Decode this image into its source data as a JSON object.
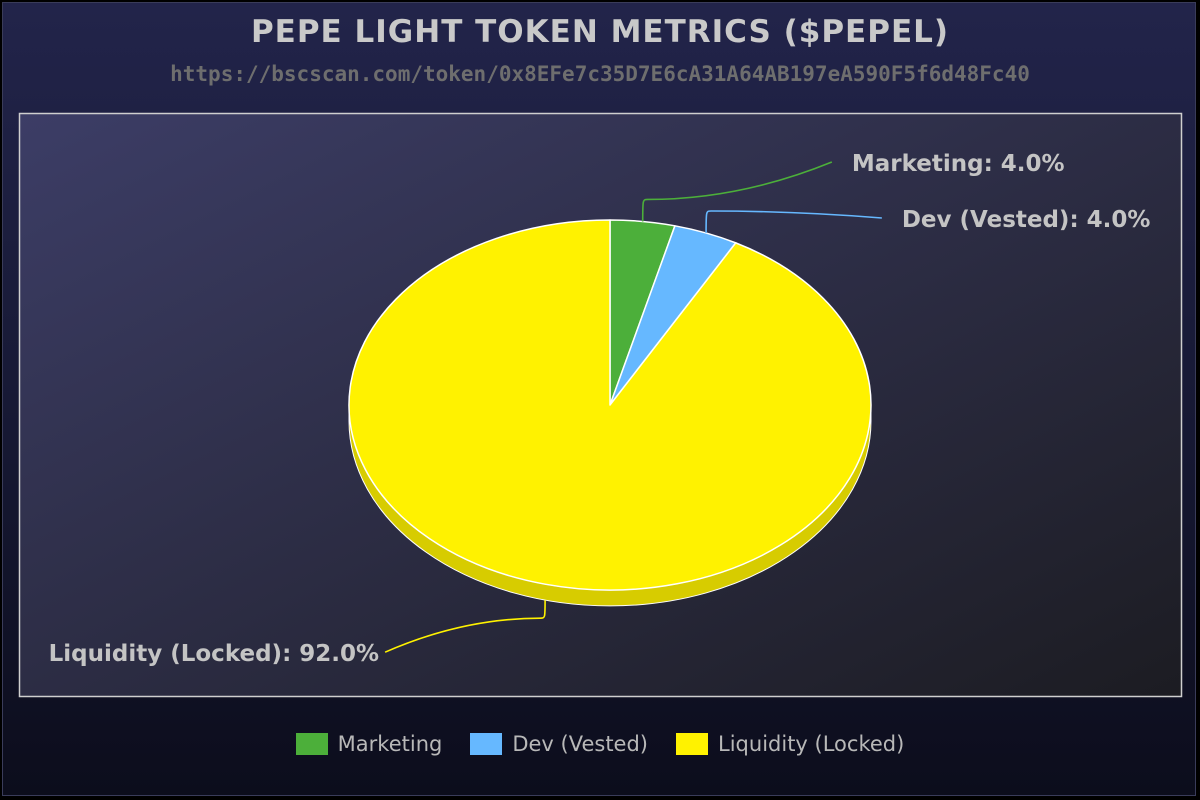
{
  "chart_data": {
    "type": "pie",
    "title": "PEPE LIGHT TOKEN METRICS ($PEPEL)",
    "subtitle": "https://bscscan.com/token/0x8EFe7c35D7E6cA31A64AB197eA590F5f6d48Fc40",
    "legend_position": "bottom",
    "slices": [
      {
        "name": "Marketing",
        "value": 4.0,
        "label": "Marketing: 4.0%",
        "color": "#4caf3a"
      },
      {
        "name": "Dev (Vested)",
        "value": 4.0,
        "label": "Dev (Vested): 4.0%",
        "color": "#66b8ff"
      },
      {
        "name": "Liquidity (Locked)",
        "value": 92.0,
        "label": "Liquidity (Locked): 92.0%",
        "color": "#fff200"
      }
    ]
  },
  "colors": {
    "background": "#161833",
    "plot_border": "#cfcfcf",
    "slice_side": "#d7cc00"
  }
}
